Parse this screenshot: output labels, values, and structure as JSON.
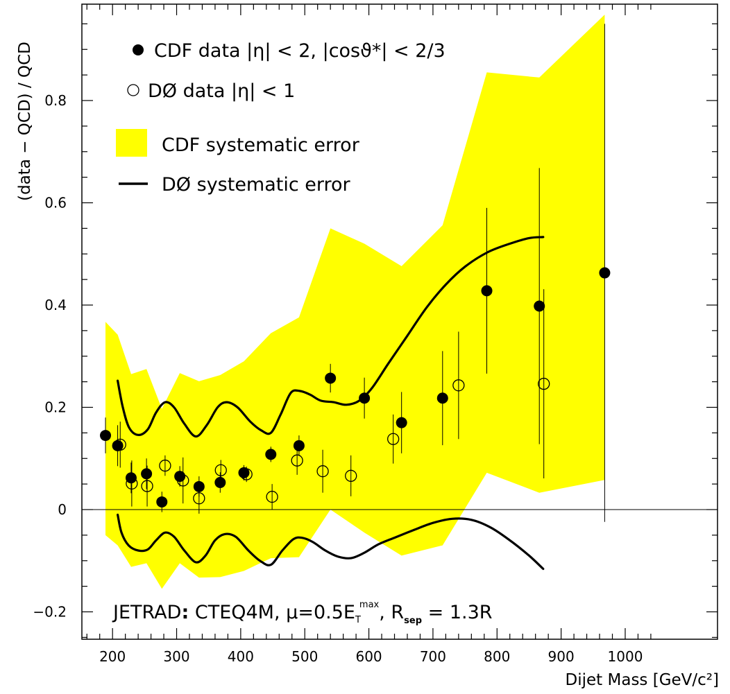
{
  "chart_data": {
    "type": "scatter",
    "xlabel": "Dijet Mass [GeV/c²]",
    "ylabel": "(data − QCD) / QCD",
    "xlim": [
      150,
      1040
    ],
    "ylim": [
      -0.25,
      0.99
    ],
    "x_ticks": [
      200,
      300,
      400,
      500,
      600,
      700,
      800,
      900,
      1000
    ],
    "x_tick_labels": [
      "200",
      "300",
      "400",
      "500",
      "600",
      "700",
      "800",
      "900",
      "1000"
    ],
    "y_ticks": [
      -0.2,
      0,
      0.2,
      0.4,
      0.6,
      0.8
    ],
    "y_tick_labels": [
      "−0.2",
      "0",
      "0.2",
      "0.4",
      "0.6",
      "0.8"
    ],
    "zero_line": true,
    "grid": false,
    "legend_position": "top-left",
    "legend": [
      {
        "marker": "filled-circle",
        "label": "CDF data  |η| < 2, |cosϑ*| < 2/3"
      },
      {
        "marker": "open-circle",
        "label": "DØ data   |η| < 1"
      },
      {
        "marker": "yellow-band",
        "label": "CDF systematic error"
      },
      {
        "marker": "black-line",
        "label": "DØ systematic error"
      }
    ],
    "annotation": {
      "prefix": "JETRAD",
      "colon": ":",
      "body_1": " CTEQ4M, μ=0.5E",
      "sub_T": "T",
      "sup_max": "max",
      "body_2": ", R",
      "sub_sep": "sep",
      "body_3": " = 1.3R"
    },
    "colors": {
      "band": "#ffff00",
      "line": "#000000",
      "marker": "#000000"
    },
    "series": [
      {
        "name": "CDF data",
        "marker": "filled",
        "points": [
          {
            "x": 189,
            "y": 0.145,
            "err": 0.035
          },
          {
            "x": 208,
            "y": 0.125,
            "err": 0.04
          },
          {
            "x": 229,
            "y": 0.062,
            "err": 0.03
          },
          {
            "x": 253,
            "y": 0.07,
            "err": 0.03
          },
          {
            "x": 277,
            "y": 0.015,
            "err": 0.02
          },
          {
            "x": 305,
            "y": 0.065,
            "err": 0.02
          },
          {
            "x": 335,
            "y": 0.045,
            "err": 0.02
          },
          {
            "x": 368,
            "y": 0.053,
            "err": 0.02
          },
          {
            "x": 405,
            "y": 0.072,
            "err": 0.015
          },
          {
            "x": 447,
            "y": 0.108,
            "err": 0.015
          },
          {
            "x": 491,
            "y": 0.125,
            "err": 0.02
          },
          {
            "x": 540,
            "y": 0.257,
            "err": 0.028
          },
          {
            "x": 593,
            "y": 0.218,
            "err": 0.04
          },
          {
            "x": 651,
            "y": 0.17,
            "err": 0.06
          },
          {
            "x": 715,
            "y": 0.218,
            "err": 0.092
          },
          {
            "x": 784,
            "y": 0.428,
            "err": 0.162
          },
          {
            "x": 866,
            "y": 0.398,
            "err": 0.27
          },
          {
            "x": 968,
            "y": 0.463,
            "err": 0.487
          }
        ]
      },
      {
        "name": "DØ data",
        "marker": "open",
        "points": [
          {
            "x": 212,
            "y": 0.127,
            "err": 0.045
          },
          {
            "x": 230,
            "y": 0.051,
            "err": 0.045
          },
          {
            "x": 254,
            "y": 0.046,
            "err": 0.04
          },
          {
            "x": 282,
            "y": 0.086,
            "err": 0.02
          },
          {
            "x": 310,
            "y": 0.057,
            "err": 0.045
          },
          {
            "x": 335,
            "y": 0.022,
            "err": 0.03
          },
          {
            "x": 369,
            "y": 0.077,
            "err": 0.02
          },
          {
            "x": 409,
            "y": 0.069,
            "err": 0.015
          },
          {
            "x": 449,
            "y": 0.025,
            "err": 0.025
          },
          {
            "x": 488,
            "y": 0.096,
            "err": 0.028
          },
          {
            "x": 528,
            "y": 0.075,
            "err": 0.042
          },
          {
            "x": 572,
            "y": 0.066,
            "err": 0.04
          },
          {
            "x": 638,
            "y": 0.138,
            "err": 0.048
          },
          {
            "x": 740,
            "y": 0.243,
            "err": 0.105
          },
          {
            "x": 873,
            "y": 0.246,
            "err": 0.185
          }
        ]
      }
    ],
    "cdf_band": {
      "x": [
        189,
        208,
        229,
        253,
        277,
        305,
        335,
        368,
        405,
        447,
        491,
        540,
        593,
        651,
        715,
        784,
        866,
        968
      ],
      "upper": [
        0.367,
        0.342,
        0.265,
        0.275,
        0.197,
        0.267,
        0.251,
        0.263,
        0.29,
        0.345,
        0.376,
        0.55,
        0.52,
        0.476,
        0.556,
        0.855,
        0.845,
        0.968
      ],
      "lower": [
        -0.05,
        -0.07,
        -0.112,
        -0.105,
        -0.155,
        -0.105,
        -0.133,
        -0.132,
        -0.12,
        -0.095,
        -0.093,
        0.0,
        -0.045,
        -0.09,
        -0.07,
        0.072,
        0.033,
        0.058
      ]
    },
    "d0_band": {
      "upper": [
        [
          208,
          0.252
        ],
        [
          216,
          0.2
        ],
        [
          226,
          0.16
        ],
        [
          240,
          0.146
        ],
        [
          255,
          0.157
        ],
        [
          268,
          0.19
        ],
        [
          282,
          0.21
        ],
        [
          296,
          0.2
        ],
        [
          312,
          0.168
        ],
        [
          330,
          0.143
        ],
        [
          347,
          0.165
        ],
        [
          364,
          0.2
        ],
        [
          378,
          0.21
        ],
        [
          395,
          0.2
        ],
        [
          415,
          0.172
        ],
        [
          432,
          0.155
        ],
        [
          447,
          0.15
        ],
        [
          462,
          0.185
        ],
        [
          478,
          0.228
        ],
        [
          492,
          0.232
        ],
        [
          508,
          0.225
        ],
        [
          525,
          0.213
        ],
        [
          545,
          0.21
        ],
        [
          565,
          0.205
        ],
        [
          585,
          0.213
        ],
        [
          605,
          0.238
        ],
        [
          630,
          0.285
        ],
        [
          660,
          0.34
        ],
        [
          690,
          0.395
        ],
        [
          720,
          0.44
        ],
        [
          750,
          0.475
        ],
        [
          785,
          0.503
        ],
        [
          820,
          0.52
        ],
        [
          850,
          0.531
        ],
        [
          872,
          0.533
        ]
      ],
      "lower": [
        [
          208,
          -0.01
        ],
        [
          214,
          -0.045
        ],
        [
          225,
          -0.07
        ],
        [
          240,
          -0.08
        ],
        [
          255,
          -0.078
        ],
        [
          268,
          -0.06
        ],
        [
          282,
          -0.045
        ],
        [
          296,
          -0.053
        ],
        [
          312,
          -0.08
        ],
        [
          330,
          -0.103
        ],
        [
          345,
          -0.09
        ],
        [
          360,
          -0.06
        ],
        [
          375,
          -0.048
        ],
        [
          392,
          -0.053
        ],
        [
          412,
          -0.08
        ],
        [
          430,
          -0.1
        ],
        [
          447,
          -0.108
        ],
        [
          465,
          -0.08
        ],
        [
          482,
          -0.058
        ],
        [
          495,
          -0.055
        ],
        [
          512,
          -0.063
        ],
        [
          532,
          -0.08
        ],
        [
          552,
          -0.092
        ],
        [
          572,
          -0.095
        ],
        [
          592,
          -0.085
        ],
        [
          615,
          -0.068
        ],
        [
          640,
          -0.055
        ],
        [
          670,
          -0.04
        ],
        [
          700,
          -0.026
        ],
        [
          730,
          -0.018
        ],
        [
          760,
          -0.02
        ],
        [
          790,
          -0.035
        ],
        [
          820,
          -0.06
        ],
        [
          850,
          -0.09
        ],
        [
          872,
          -0.116
        ]
      ]
    }
  }
}
